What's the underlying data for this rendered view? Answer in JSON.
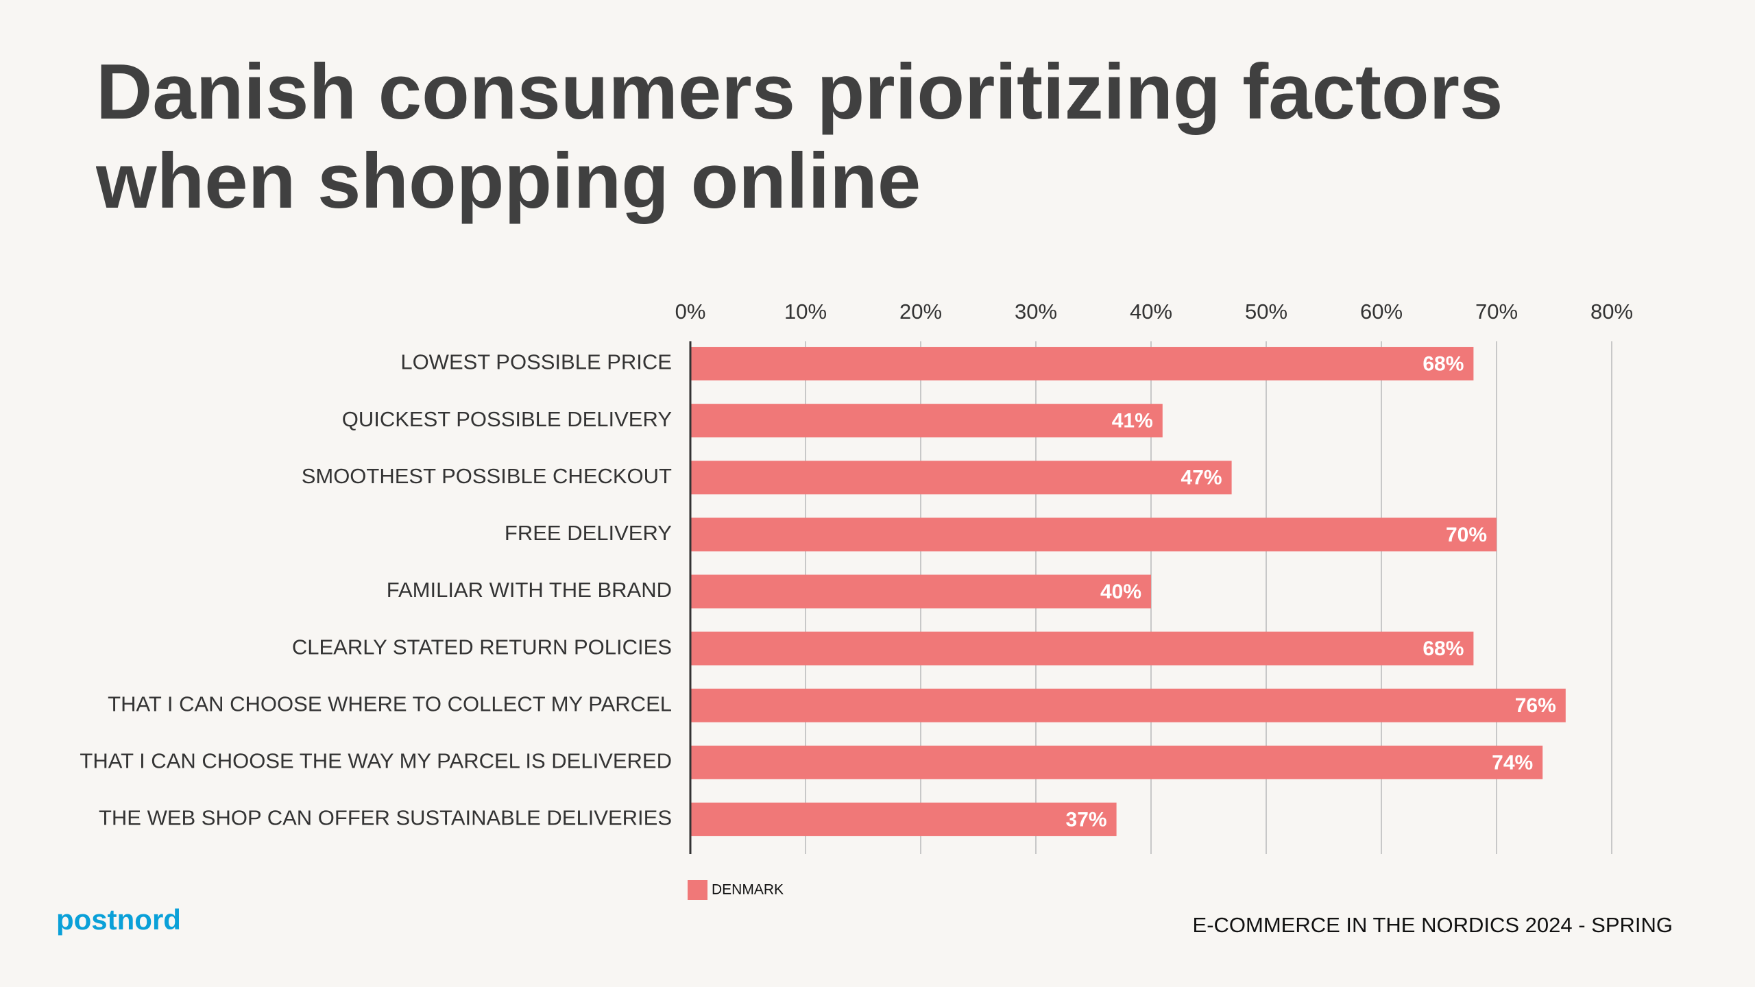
{
  "chart_data": {
    "type": "hbar",
    "title": "Danish consumers prioritizing factors when shopping online",
    "categories": [
      "LOWEST POSSIBLE PRICE",
      "QUICKEST POSSIBLE DELIVERY",
      "SMOOTHEST POSSIBLE CHECKOUT",
      "FREE DELIVERY",
      "FAMILIAR WITH THE BRAND",
      "CLEARLY STATED RETURN POLICIES",
      "THAT I CAN CHOOSE WHERE TO COLLECT MY PARCEL",
      "THAT I CAN CHOOSE THE WAY MY PARCEL IS DELIVERED",
      "THE WEB SHOP CAN OFFER SUSTAINABLE DELIVERIES"
    ],
    "series": [
      {
        "name": "DENMARK",
        "color": "#f07878",
        "values": [
          68,
          41,
          47,
          70,
          40,
          68,
          76,
          74,
          37
        ],
        "value_labels": [
          "68%",
          "41%",
          "47%",
          "70%",
          "40%",
          "68%",
          "76%",
          "74%",
          "37%"
        ]
      }
    ],
    "xlim": [
      0,
      80
    ],
    "xticks": [
      {
        "value": 0,
        "label": "0%"
      },
      {
        "value": 10,
        "label": "10%"
      },
      {
        "value": 20,
        "label": "20%"
      },
      {
        "value": 30,
        "label": "30%"
      },
      {
        "value": 40,
        "label": "40%"
      },
      {
        "value": 50,
        "label": "50%"
      },
      {
        "value": 60,
        "label": "60%"
      },
      {
        "value": 70,
        "label": "70%"
      },
      {
        "value": 80,
        "label": "80%"
      }
    ],
    "grid": true,
    "legend": "bottom"
  },
  "brand": "postnord",
  "source": "E-COMMERCE IN THE NORDICS 2024 - SPRING"
}
